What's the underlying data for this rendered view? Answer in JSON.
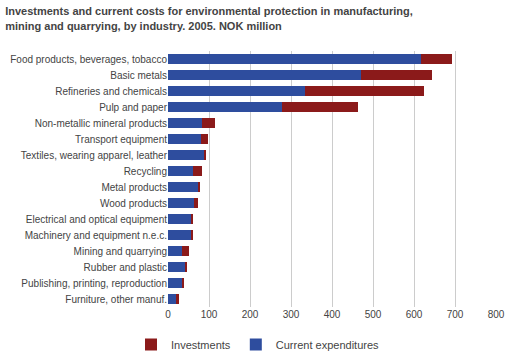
{
  "chart_data": {
    "type": "bar",
    "orientation": "horizontal",
    "stacked": true,
    "title": "Investments and current costs for environmental protection in manufacturing,\nmining and quarrying, by industry. 2005. NOK million",
    "categories": [
      "Food products, beverages, tobacco",
      "Basic metals",
      "Refineries and chemicals",
      "Pulp and paper",
      "Non-metallic mineral products",
      "Transport equipment",
      "Textiles, wearing apparel, leather",
      "Recycling",
      "Metal products",
      "Wood products",
      "Electrical and optical equipment",
      "Machinery and equipment n.e.c.",
      "Mining and quarrying",
      "Rubber and plastic",
      "Publishing, printing, reproduction",
      "Furniture, other manuf."
    ],
    "series": [
      {
        "name": "Current expenditures",
        "color": "#2e4d9e",
        "values": [
          618,
          470,
          335,
          278,
          82,
          80,
          88,
          62,
          73,
          63,
          58,
          55,
          33,
          42,
          36,
          20
        ]
      },
      {
        "name": "Investments",
        "color": "#8b1a1a",
        "values": [
          75,
          175,
          290,
          185,
          33,
          18,
          4,
          22,
          6,
          10,
          4,
          6,
          18,
          2,
          2,
          7
        ]
      }
    ],
    "xlim": [
      0,
      800
    ],
    "xticks": [
      0,
      100,
      200,
      300,
      400,
      500,
      600,
      700,
      800
    ],
    "grid": true,
    "legend": "bottom"
  }
}
